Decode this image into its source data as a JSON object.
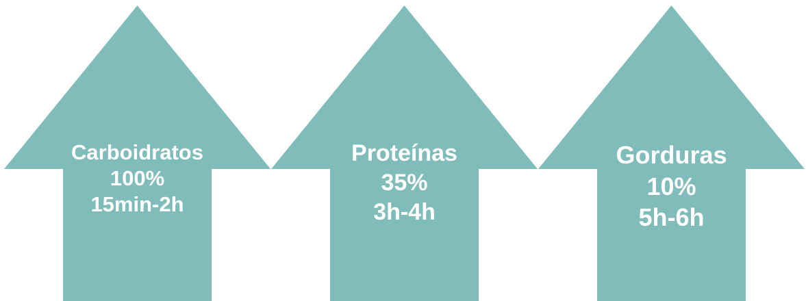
{
  "fill_color": "#80bcb9",
  "text_color": "#ffffff",
  "arrows": [
    {
      "icon": "up-arrow-icon",
      "label": "Carboidratos",
      "percent": "100%",
      "time": "15min-2h"
    },
    {
      "icon": "up-arrow-icon",
      "label": "Proteínas",
      "percent": "35%",
      "time": "3h-4h"
    },
    {
      "icon": "up-arrow-icon",
      "label": "Gorduras",
      "percent": "10%",
      "time": "5h-6h"
    }
  ]
}
